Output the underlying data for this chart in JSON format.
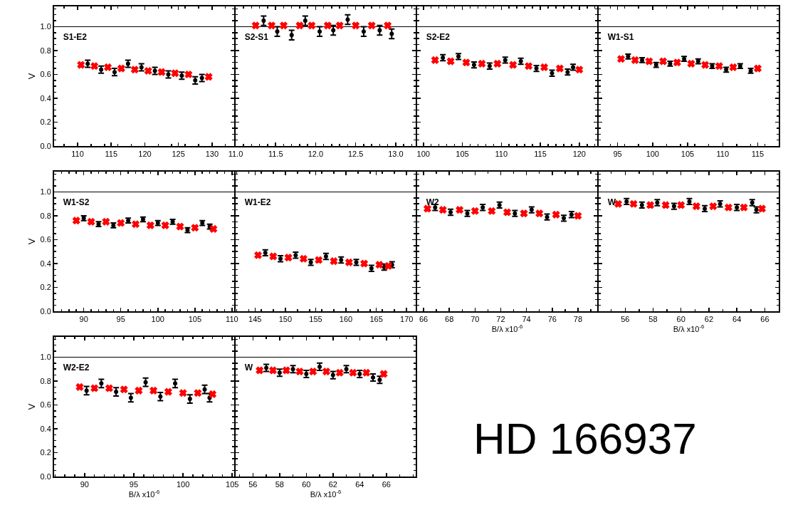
{
  "chart_data": [
    {
      "type": "scatter",
      "title": "S1-E2",
      "ylabel": "V",
      "xlim": [
        106.5,
        133.3
      ],
      "xticks": [
        110,
        115,
        120,
        125,
        130
      ],
      "ylim": [
        0,
        1.17
      ],
      "yticks": [
        {
          "value": 0,
          "label": "0.0"
        },
        {
          "value": 0.2,
          "label": "0.2"
        },
        {
          "value": 0.4,
          "label": "0.4"
        },
        {
          "value": 0.6,
          "label": "0.6"
        },
        {
          "value": 0.8,
          "label": "0.8"
        },
        {
          "value": 1,
          "label": "1.0"
        }
      ],
      "grid": false,
      "legend": false,
      "ref_lines": [
        {
          "axis": "y",
          "value": 1,
          "color": "#000000"
        }
      ],
      "x": [
        110.5,
        112.5,
        114.5,
        116.5,
        118.5,
        120.5,
        122.5,
        124.5,
        126.5,
        129.5
      ],
      "series": [
        {
          "color": "#000000",
          "x": [
            111.5,
            113.5,
            115.5,
            117.5,
            119.5,
            121.5,
            123.5,
            125.5,
            127.5,
            128.5
          ],
          "values": [
            0.69,
            0.64,
            0.62,
            0.69,
            0.66,
            0.63,
            0.6,
            0.59,
            0.55,
            0.57
          ],
          "errors": [
            0.03,
            0.03,
            0.03,
            0.03,
            0.03,
            0.03,
            0.03,
            0.03,
            0.03,
            0.03
          ]
        },
        {
          "color": "#ff0000",
          "marker": "cross",
          "values": [
            0.68,
            0.67,
            0.66,
            0.65,
            0.64,
            0.63,
            0.62,
            0.61,
            0.6,
            0.58
          ]
        }
      ]
    },
    {
      "type": "scatter",
      "title": "S2-S1",
      "tick_labels": "x",
      "xlim": [
        11.0,
        13.25
      ],
      "xticks": [
        {
          "value": 11,
          "label": "11.0"
        },
        {
          "value": 11.5,
          "label": "11.5"
        },
        {
          "value": 12,
          "label": "12.0"
        },
        {
          "value": 12.5,
          "label": "12.5"
        },
        {
          "value": 13,
          "label": "13.0"
        }
      ],
      "ylim": [
        0,
        1.17
      ],
      "yticks": [
        0,
        0.2,
        0.4,
        0.6,
        0.8,
        1
      ],
      "grid": false,
      "legend": false,
      "ref_lines": [
        {
          "axis": "y",
          "value": 1,
          "color": "#000000"
        }
      ],
      "x": [
        11.25,
        11.45,
        11.6,
        11.8,
        11.95,
        12.15,
        12.3,
        12.5,
        12.7,
        12.9
      ],
      "series": [
        {
          "color": "#000000",
          "x": [
            11.35,
            11.52,
            11.7,
            11.87,
            12.05,
            12.22,
            12.4,
            12.6,
            12.8,
            12.95
          ],
          "values": [
            1.05,
            0.96,
            0.93,
            1.05,
            0.96,
            0.97,
            1.06,
            0.96,
            0.97,
            0.94
          ],
          "errors": [
            0.04,
            0.04,
            0.04,
            0.04,
            0.04,
            0.04,
            0.04,
            0.04,
            0.04,
            0.04
          ]
        },
        {
          "color": "#ff0000",
          "marker": "cross",
          "values": [
            1.01,
            1.01,
            1.01,
            1.01,
            1.01,
            1.01,
            1.01,
            1.01,
            1.01,
            1.01
          ]
        }
      ]
    },
    {
      "type": "scatter",
      "title": "S2-E2",
      "tick_labels": "x",
      "xlim": [
        99.2,
        122.3
      ],
      "xticks": [
        100,
        105,
        110,
        115,
        120
      ],
      "ylim": [
        0,
        1.17
      ],
      "yticks": [
        0,
        0.2,
        0.4,
        0.6,
        0.8,
        1
      ],
      "grid": false,
      "legend": false,
      "ref_lines": [
        {
          "axis": "y",
          "value": 1,
          "color": "#000000"
        }
      ],
      "x": [
        101.5,
        103.5,
        105.5,
        107.5,
        109.5,
        111.5,
        113.5,
        115.5,
        117.5,
        120
      ],
      "series": [
        {
          "color": "#000000",
          "x": [
            102.5,
            104.5,
            106.5,
            108.5,
            110.5,
            112.5,
            114.5,
            116.5,
            118.5,
            119.2
          ],
          "values": [
            0.74,
            0.75,
            0.68,
            0.67,
            0.72,
            0.71,
            0.65,
            0.61,
            0.62,
            0.66
          ],
          "errors": [
            0.025,
            0.025,
            0.025,
            0.025,
            0.025,
            0.025,
            0.025,
            0.025,
            0.025,
            0.025
          ]
        },
        {
          "color": "#ff0000",
          "marker": "cross",
          "values": [
            0.72,
            0.71,
            0.7,
            0.69,
            0.69,
            0.68,
            0.67,
            0.66,
            0.65,
            0.64
          ]
        }
      ]
    },
    {
      "type": "scatter",
      "title": "W1-S1",
      "tick_labels": "x",
      "xlim": [
        92.3,
        118.0
      ],
      "xticks": [
        95,
        100,
        105,
        110,
        115
      ],
      "ylim": [
        0,
        1.17
      ],
      "yticks": [
        0,
        0.2,
        0.4,
        0.6,
        0.8,
        1
      ],
      "grid": false,
      "legend": false,
      "ref_lines": [
        {
          "axis": "y",
          "value": 1,
          "color": "#000000"
        }
      ],
      "x": [
        95.5,
        97.5,
        99.5,
        101.5,
        103.5,
        105.5,
        107.5,
        109.5,
        111.5,
        115
      ],
      "series": [
        {
          "color": "#000000",
          "x": [
            96.5,
            98.5,
            100.5,
            102.5,
            104.5,
            106.5,
            108.5,
            110.5,
            112.5,
            114
          ],
          "values": [
            0.75,
            0.72,
            0.68,
            0.69,
            0.73,
            0.71,
            0.67,
            0.64,
            0.67,
            0.63
          ],
          "errors": [
            0.02,
            0.02,
            0.02,
            0.02,
            0.02,
            0.02,
            0.02,
            0.02,
            0.02,
            0.02
          ]
        },
        {
          "color": "#ff0000",
          "marker": "cross",
          "values": [
            0.73,
            0.72,
            0.71,
            0.71,
            0.7,
            0.69,
            0.68,
            0.67,
            0.66,
            0.65
          ]
        }
      ]
    },
    {
      "type": "scatter",
      "title": "W1-S2",
      "ylabel": "V",
      "xlim": [
        86.0,
        110.3
      ],
      "xticks": [
        90,
        95,
        100,
        105,
        110
      ],
      "ylim": [
        0,
        1.17
      ],
      "yticks": [
        {
          "value": 0,
          "label": "0.0"
        },
        {
          "value": 0.2,
          "label": "0.2"
        },
        {
          "value": 0.4,
          "label": "0.4"
        },
        {
          "value": 0.6,
          "label": "0.6"
        },
        {
          "value": 0.8,
          "label": "0.8"
        },
        {
          "value": 1,
          "label": "1.0"
        }
      ],
      "grid": false,
      "legend": false,
      "ref_lines": [
        {
          "axis": "y",
          "value": 1,
          "color": "#000000"
        }
      ],
      "x": [
        89,
        91,
        93,
        95,
        97,
        99,
        101,
        103,
        105,
        107.5
      ],
      "series": [
        {
          "color": "#000000",
          "x": [
            90,
            92,
            94,
            96,
            98,
            100,
            102,
            104,
            106,
            107
          ],
          "values": [
            0.78,
            0.73,
            0.72,
            0.76,
            0.77,
            0.74,
            0.75,
            0.68,
            0.74,
            0.71
          ],
          "errors": [
            0.02,
            0.02,
            0.02,
            0.02,
            0.02,
            0.02,
            0.02,
            0.02,
            0.02,
            0.02
          ]
        },
        {
          "color": "#ff0000",
          "marker": "cross",
          "values": [
            0.76,
            0.75,
            0.75,
            0.74,
            0.73,
            0.72,
            0.72,
            0.71,
            0.7,
            0.69
          ]
        }
      ]
    },
    {
      "type": "scatter",
      "title": "W1-E2",
      "tick_labels": "x",
      "xlim": [
        141.8,
        171.5
      ],
      "xticks": [
        145,
        150,
        155,
        160,
        165,
        170
      ],
      "ylim": [
        0,
        1.17
      ],
      "yticks": [
        0,
        0.2,
        0.4,
        0.6,
        0.8,
        1
      ],
      "grid": false,
      "legend": false,
      "ref_lines": [
        {
          "axis": "y",
          "value": 1,
          "color": "#000000"
        }
      ],
      "x": [
        145.5,
        148,
        150.5,
        153,
        155.5,
        158,
        160.5,
        163,
        165.5,
        167
      ],
      "series": [
        {
          "color": "#000000",
          "x": [
            146.7,
            149.2,
            151.7,
            154.2,
            156.7,
            159.2,
            161.7,
            164.2,
            166.3,
            167.6
          ],
          "values": [
            0.49,
            0.44,
            0.47,
            0.41,
            0.46,
            0.43,
            0.41,
            0.36,
            0.37,
            0.39
          ],
          "errors": [
            0.025,
            0.025,
            0.025,
            0.025,
            0.025,
            0.025,
            0.025,
            0.025,
            0.025,
            0.025
          ]
        },
        {
          "color": "#ff0000",
          "marker": "cross",
          "values": [
            0.47,
            0.46,
            0.45,
            0.44,
            0.43,
            0.42,
            0.41,
            0.4,
            0.39,
            0.38
          ]
        }
      ]
    },
    {
      "type": "scatter",
      "title": "W2",
      "xlabel": "B/λ x10$^{-6}$",
      "tick_labels": "x",
      "xlim": [
        65.5,
        79.5
      ],
      "xticks": [
        66,
        68,
        70,
        72,
        74,
        76,
        78
      ],
      "ylim": [
        0,
        1.17
      ],
      "yticks": [
        0,
        0.2,
        0.4,
        0.6,
        0.8,
        1
      ],
      "grid": false,
      "legend": false,
      "ref_lines": [
        {
          "axis": "y",
          "value": 1,
          "color": "#000000"
        }
      ],
      "x": [
        66.3,
        67.5,
        68.8,
        70,
        71.3,
        72.5,
        73.8,
        75,
        76.3,
        78
      ],
      "series": [
        {
          "color": "#000000",
          "x": [
            66.9,
            68.1,
            69.4,
            70.6,
            71.9,
            73.1,
            74.4,
            75.6,
            76.9,
            77.5
          ],
          "values": [
            0.87,
            0.83,
            0.82,
            0.87,
            0.89,
            0.82,
            0.85,
            0.79,
            0.78,
            0.81
          ],
          "errors": [
            0.025,
            0.025,
            0.025,
            0.025,
            0.025,
            0.025,
            0.025,
            0.025,
            0.025,
            0.025
          ]
        },
        {
          "color": "#ff0000",
          "marker": "cross",
          "values": [
            0.86,
            0.85,
            0.85,
            0.84,
            0.84,
            0.83,
            0.82,
            0.82,
            0.81,
            0.8
          ]
        }
      ]
    },
    {
      "type": "scatter",
      "title": "W",
      "xlabel": "B/λ x10$^{-6}$",
      "tick_labels": "x",
      "xlim": [
        54.1,
        67.0
      ],
      "xticks": [
        56,
        58,
        60,
        62,
        64,
        66
      ],
      "ylim": [
        0,
        1.17
      ],
      "yticks": [
        0,
        0.2,
        0.4,
        0.6,
        0.8,
        1
      ],
      "grid": false,
      "legend": false,
      "ref_lines": [
        {
          "axis": "y",
          "value": 1,
          "color": "#000000"
        }
      ],
      "x": [
        55.5,
        56.6,
        57.8,
        58.9,
        60,
        61.1,
        62.3,
        63.4,
        64.5,
        65.8
      ],
      "series": [
        {
          "color": "#000000",
          "x": [
            56.1,
            57.2,
            58.3,
            59.5,
            60.6,
            61.7,
            62.8,
            64,
            65.1,
            65.4
          ],
          "values": [
            0.92,
            0.89,
            0.91,
            0.88,
            0.92,
            0.86,
            0.9,
            0.87,
            0.91,
            0.85
          ],
          "errors": [
            0.025,
            0.025,
            0.025,
            0.025,
            0.025,
            0.025,
            0.025,
            0.025,
            0.025,
            0.025
          ]
        },
        {
          "color": "#ff0000",
          "marker": "cross",
          "values": [
            0.9,
            0.9,
            0.89,
            0.89,
            0.89,
            0.88,
            0.88,
            0.87,
            0.87,
            0.86
          ]
        }
      ]
    },
    {
      "type": "scatter",
      "title": "W2-E2",
      "ylabel": "V",
      "xlabel": "B/λ x10$^{-6}$",
      "xlim": [
        86.9,
        105.2
      ],
      "xticks": [
        90,
        95,
        100,
        105
      ],
      "ylim": [
        0,
        1.17
      ],
      "yticks": [
        {
          "value": 0,
          "label": "0.0"
        },
        {
          "value": 0.2,
          "label": "0.2"
        },
        {
          "value": 0.4,
          "label": "0.4"
        },
        {
          "value": 0.6,
          "label": "0.6"
        },
        {
          "value": 0.8,
          "label": "0.8"
        },
        {
          "value": 1,
          "label": "1.0"
        }
      ],
      "grid": false,
      "legend": false,
      "ref_lines": [
        {
          "axis": "y",
          "value": 1,
          "color": "#000000"
        }
      ],
      "x": [
        89.5,
        91,
        92.5,
        94,
        95.5,
        97,
        98.5,
        100,
        101.5,
        103
      ],
      "series": [
        {
          "color": "#000000",
          "x": [
            90.2,
            91.7,
            93.2,
            94.7,
            96.2,
            97.7,
            99.2,
            100.7,
            102.2,
            102.7
          ],
          "values": [
            0.72,
            0.78,
            0.71,
            0.66,
            0.79,
            0.67,
            0.78,
            0.65,
            0.73,
            0.66
          ],
          "errors": [
            0.035,
            0.035,
            0.035,
            0.035,
            0.035,
            0.035,
            0.035,
            0.035,
            0.035,
            0.035
          ]
        },
        {
          "color": "#ff0000",
          "marker": "cross",
          "values": [
            0.75,
            0.74,
            0.74,
            0.73,
            0.72,
            0.72,
            0.71,
            0.7,
            0.7,
            0.69
          ]
        }
      ]
    },
    {
      "type": "scatter",
      "title": "W",
      "xlabel": "B/λ x10$^{-6}$",
      "tick_labels": "x",
      "xlim": [
        54.7,
        68.2
      ],
      "xticks": [
        56,
        58,
        60,
        62,
        64,
        66
      ],
      "ylim": [
        0,
        1.17
      ],
      "yticks": [
        0,
        0.2,
        0.4,
        0.6,
        0.8,
        1
      ],
      "grid": false,
      "legend": false,
      "ref_lines": [
        {
          "axis": "y",
          "value": 1,
          "color": "#000000"
        }
      ],
      "x": [
        56.5,
        57.5,
        58.5,
        59.5,
        60.5,
        61.5,
        62.5,
        63.5,
        64.5,
        65.8
      ],
      "series": [
        {
          "color": "#000000",
          "x": [
            57,
            58,
            59,
            60,
            61,
            62,
            63,
            64,
            65,
            65.5
          ],
          "values": [
            0.91,
            0.87,
            0.9,
            0.86,
            0.92,
            0.85,
            0.9,
            0.86,
            0.83,
            0.81
          ],
          "errors": [
            0.03,
            0.03,
            0.03,
            0.03,
            0.03,
            0.03,
            0.03,
            0.03,
            0.03,
            0.03
          ]
        },
        {
          "color": "#ff0000",
          "marker": "cross",
          "values": [
            0.89,
            0.89,
            0.89,
            0.88,
            0.88,
            0.88,
            0.87,
            0.87,
            0.87,
            0.86
          ]
        }
      ]
    },
    {
      "type": "other",
      "title": "HD 166937"
    }
  ]
}
